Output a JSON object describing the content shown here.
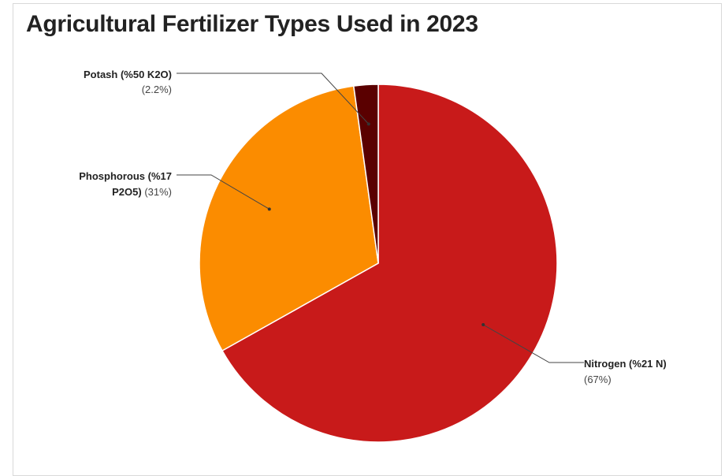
{
  "chart_data": {
    "type": "pie",
    "title": "Agricultural Fertilizer Types Used in 2023",
    "slices": [
      {
        "label": "Nitrogen (%21 N)",
        "value": 67,
        "value_label": "(67%)",
        "color": "#c81a1a"
      },
      {
        "label": "Phosphorous (%17 P2O5)",
        "value": 31,
        "value_label": "(31%)",
        "color": "#fb8c00"
      },
      {
        "label": "Potash (%50 K2O)",
        "value": 2.2,
        "value_label": "(2.2%)",
        "color": "#5a0000"
      }
    ],
    "legend": "none",
    "annotations": {
      "nitrogen": {
        "line1": "Nitrogen (%21 N)",
        "line2": "(67%)"
      },
      "phosphorous": {
        "line1_bold": "Phosphorous (%17",
        "line2_bold": "P2O5)",
        "line2_norm": " (31%)"
      },
      "potash": {
        "line1": "Potash (%50 K2O)",
        "line2": "(2.2%)"
      }
    }
  }
}
